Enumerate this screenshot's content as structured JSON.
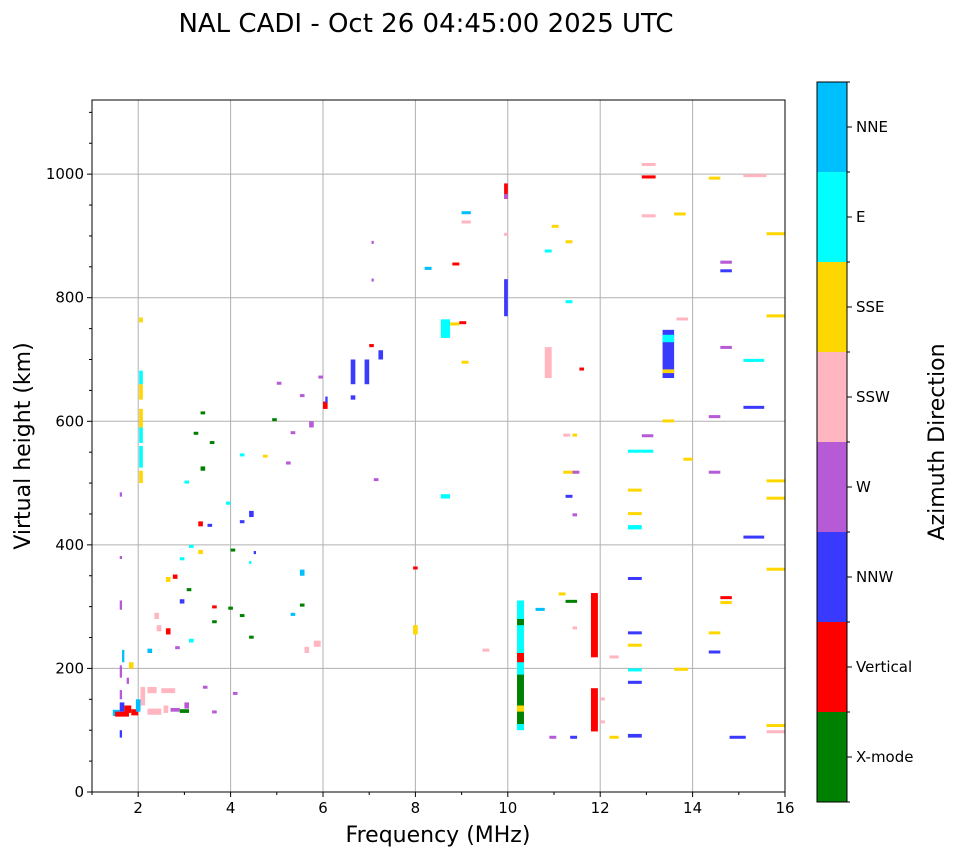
{
  "chart_data": {
    "type": "heatmap",
    "title": "NAL CADI - Oct 26 04:45:00 2025 UTC",
    "xlabel": "Frequency (MHz)",
    "ylabel": "Virtual height (km)",
    "xlim": [
      1,
      16
    ],
    "ylim": [
      0,
      1120
    ],
    "xticks": [
      2,
      4,
      6,
      8,
      10,
      12,
      14,
      16
    ],
    "yticks": [
      0,
      200,
      400,
      600,
      800,
      1000
    ],
    "grid": true,
    "colorbar": {
      "label": "Azimuth Direction",
      "categories": [
        "X-mode",
        "Vertical",
        "NNW",
        "W",
        "SSW",
        "SSE",
        "E",
        "NNE"
      ],
      "colors": [
        "#008000",
        "#ff0000",
        "#3a3aff",
        "#b65ad6",
        "#ffb6c1",
        "#ffd700",
        "#00ffff",
        "#00bfff"
      ]
    },
    "echo_fields": [
      "f_start_MHz",
      "f_end_MHz",
      "h_start_km",
      "h_end_km",
      "category_index"
    ],
    "echoes": [
      [
        2.02,
        2.1,
        500,
        520,
        5
      ],
      [
        2.02,
        2.1,
        525,
        560,
        6
      ],
      [
        2.02,
        2.1,
        565,
        590,
        6
      ],
      [
        2.02,
        2.1,
        590,
        620,
        5
      ],
      [
        2.02,
        2.1,
        635,
        660,
        5
      ],
      [
        2.02,
        2.1,
        660,
        682,
        6
      ],
      [
        2.02,
        2.1,
        760,
        768,
        5
      ],
      [
        1.45,
        1.6,
        123,
        133,
        7
      ],
      [
        1.5,
        1.8,
        122,
        130,
        1
      ],
      [
        1.6,
        1.7,
        130,
        145,
        2
      ],
      [
        1.7,
        1.85,
        128,
        140,
        1
      ],
      [
        1.85,
        2.0,
        124,
        134,
        1
      ],
      [
        1.95,
        2.05,
        130,
        150,
        7
      ],
      [
        1.6,
        1.65,
        88,
        100,
        2
      ],
      [
        1.6,
        1.65,
        150,
        165,
        3
      ],
      [
        1.6,
        1.65,
        185,
        205,
        3
      ],
      [
        1.65,
        1.7,
        210,
        230,
        7
      ],
      [
        1.8,
        1.9,
        200,
        210,
        5
      ],
      [
        1.75,
        1.8,
        175,
        185,
        3
      ],
      [
        1.6,
        1.65,
        478,
        485,
        3
      ],
      [
        1.6,
        1.65,
        378,
        382,
        3
      ],
      [
        1.6,
        1.65,
        295,
        310,
        3
      ],
      [
        2.05,
        2.15,
        140,
        170,
        4
      ],
      [
        2.2,
        2.5,
        125,
        135,
        4
      ],
      [
        2.2,
        2.4,
        160,
        170,
        4
      ],
      [
        2.5,
        2.8,
        160,
        168,
        4
      ],
      [
        2.55,
        2.65,
        128,
        140,
        4
      ],
      [
        2.7,
        2.9,
        130,
        136,
        3
      ],
      [
        2.9,
        3.1,
        128,
        134,
        0
      ],
      [
        3.0,
        3.1,
        135,
        145,
        3
      ],
      [
        3.4,
        3.5,
        168,
        172,
        3
      ],
      [
        3.6,
        3.7,
        128,
        132,
        3
      ],
      [
        4.05,
        4.15,
        158,
        162,
        3
      ],
      [
        2.2,
        2.3,
        225,
        232,
        7
      ],
      [
        2.4,
        2.5,
        260,
        270,
        4
      ],
      [
        2.35,
        2.45,
        280,
        290,
        4
      ],
      [
        2.6,
        2.7,
        255,
        265,
        1
      ],
      [
        2.8,
        2.9,
        232,
        236,
        3
      ],
      [
        3.1,
        3.2,
        242,
        248,
        6
      ],
      [
        2.9,
        3.0,
        305,
        312,
        2
      ],
      [
        3.05,
        3.15,
        325,
        330,
        0
      ],
      [
        2.75,
        2.85,
        345,
        352,
        1
      ],
      [
        2.6,
        2.7,
        340,
        348,
        5
      ],
      [
        2.9,
        3.0,
        375,
        380,
        6
      ],
      [
        3.1,
        3.2,
        395,
        400,
        6
      ],
      [
        3.3,
        3.4,
        385,
        392,
        5
      ],
      [
        3.3,
        3.4,
        430,
        438,
        1
      ],
      [
        3.5,
        3.6,
        430,
        434,
        2
      ],
      [
        3.0,
        3.1,
        500,
        504,
        6
      ],
      [
        3.35,
        3.45,
        520,
        527,
        0
      ],
      [
        3.2,
        3.3,
        580,
        583,
        0
      ],
      [
        3.35,
        3.45,
        612,
        616,
        0
      ],
      [
        3.55,
        3.65,
        565,
        568,
        0
      ],
      [
        3.6,
        3.7,
        298,
        302,
        1
      ],
      [
        3.6,
        3.7,
        275,
        278,
        0
      ],
      [
        3.95,
        4.05,
        295,
        300,
        0
      ],
      [
        4.2,
        4.3,
        285,
        288,
        0
      ],
      [
        4.4,
        4.5,
        250,
        253,
        0
      ],
      [
        4.4,
        4.45,
        370,
        374,
        6
      ],
      [
        4.5,
        4.55,
        385,
        390,
        2
      ],
      [
        4.0,
        4.1,
        390,
        394,
        0
      ],
      [
        3.9,
        4.0,
        465,
        470,
        6
      ],
      [
        4.4,
        4.5,
        445,
        455,
        2
      ],
      [
        4.2,
        4.3,
        545,
        548,
        6
      ],
      [
        4.2,
        4.3,
        435,
        440,
        2
      ],
      [
        4.7,
        4.8,
        543,
        546,
        5
      ],
      [
        4.9,
        5.0,
        602,
        605,
        0
      ],
      [
        5.2,
        5.3,
        530,
        535,
        3
      ],
      [
        5.3,
        5.4,
        580,
        584,
        3
      ],
      [
        5.0,
        5.1,
        660,
        664,
        3
      ],
      [
        5.5,
        5.6,
        640,
        644,
        3
      ],
      [
        5.7,
        5.8,
        590,
        600,
        3
      ],
      [
        5.9,
        6.0,
        670,
        674,
        3
      ],
      [
        6.0,
        6.1,
        620,
        632,
        1
      ],
      [
        6.05,
        6.1,
        630,
        640,
        2
      ],
      [
        6.6,
        6.7,
        660,
        700,
        2
      ],
      [
        6.6,
        6.7,
        635,
        642,
        2
      ],
      [
        6.9,
        7.0,
        660,
        700,
        2
      ],
      [
        7.0,
        7.1,
        720,
        725,
        1
      ],
      [
        7.2,
        7.3,
        700,
        715,
        2
      ],
      [
        7.05,
        7.1,
        888,
        892,
        3
      ],
      [
        7.05,
        7.1,
        828,
        831,
        3
      ],
      [
        5.3,
        5.4,
        285,
        290,
        7
      ],
      [
        5.5,
        5.6,
        350,
        360,
        7
      ],
      [
        5.6,
        5.7,
        225,
        235,
        4
      ],
      [
        5.8,
        5.95,
        235,
        245,
        4
      ],
      [
        5.5,
        5.6,
        300,
        305,
        0
      ],
      [
        7.95,
        8.05,
        255,
        270,
        5
      ],
      [
        7.95,
        8.05,
        362,
        365,
        1
      ],
      [
        7.1,
        7.2,
        505,
        508,
        3
      ],
      [
        8.2,
        8.35,
        845,
        850,
        7
      ],
      [
        8.55,
        8.75,
        735,
        765,
        6
      ],
      [
        8.75,
        8.95,
        755,
        760,
        5
      ],
      [
        8.95,
        9.1,
        758,
        762,
        1
      ],
      [
        8.8,
        8.95,
        853,
        857,
        1
      ],
      [
        9.0,
        9.2,
        937,
        940,
        7
      ],
      [
        9.0,
        9.2,
        922,
        925,
        4
      ],
      [
        9.0,
        9.15,
        695,
        698,
        5
      ],
      [
        8.55,
        8.75,
        475,
        482,
        6
      ],
      [
        9.45,
        9.6,
        228,
        232,
        4
      ],
      [
        9.92,
        10.0,
        960,
        985,
        1
      ],
      [
        9.92,
        10.0,
        960,
        968,
        3
      ],
      [
        9.92,
        10.0,
        770,
        830,
        2
      ],
      [
        9.92,
        10.0,
        900,
        905,
        4
      ],
      [
        10.2,
        10.35,
        100,
        310,
        6
      ],
      [
        10.2,
        10.35,
        110,
        190,
        0
      ],
      [
        10.2,
        10.35,
        210,
        225,
        1
      ],
      [
        10.2,
        10.35,
        270,
        280,
        0
      ],
      [
        10.2,
        10.35,
        130,
        140,
        5
      ],
      [
        10.6,
        10.8,
        295,
        298,
        7
      ],
      [
        10.8,
        10.95,
        670,
        720,
        4
      ],
      [
        10.8,
        10.95,
        875,
        878,
        6
      ],
      [
        10.95,
        11.1,
        915,
        918,
        5
      ],
      [
        11.25,
        11.4,
        890,
        893,
        5
      ],
      [
        11.25,
        11.4,
        793,
        796,
        6
      ],
      [
        11.55,
        11.65,
        684,
        687,
        1
      ],
      [
        11.2,
        11.35,
        578,
        580,
        4
      ],
      [
        11.4,
        11.5,
        578,
        580,
        5
      ],
      [
        11.2,
        11.5,
        517,
        520,
        5
      ],
      [
        11.4,
        11.55,
        517,
        520,
        3
      ],
      [
        11.25,
        11.4,
        478,
        481,
        2
      ],
      [
        11.4,
        11.5,
        448,
        451,
        3
      ],
      [
        11.1,
        11.25,
        320,
        323,
        5
      ],
      [
        11.25,
        11.5,
        308,
        311,
        0
      ],
      [
        11.4,
        11.5,
        265,
        268,
        4
      ],
      [
        10.9,
        11.05,
        88,
        91,
        3
      ],
      [
        11.35,
        11.5,
        88,
        91,
        2
      ],
      [
        11.8,
        11.95,
        218,
        322,
        1
      ],
      [
        11.8,
        11.95,
        98,
        168,
        1
      ],
      [
        12.0,
        12.1,
        150,
        153,
        4
      ],
      [
        12.0,
        12.1,
        113,
        116,
        4
      ],
      [
        12.2,
        12.4,
        218,
        221,
        4
      ],
      [
        12.2,
        12.4,
        88,
        91,
        5
      ],
      [
        12.9,
        13.2,
        1015,
        1018,
        4
      ],
      [
        12.9,
        13.2,
        993,
        998,
        1
      ],
      [
        12.9,
        13.2,
        932,
        935,
        4
      ],
      [
        12.9,
        13.15,
        575,
        579,
        3
      ],
      [
        12.9,
        13.15,
        551,
        554,
        6
      ],
      [
        12.6,
        12.9,
        551,
        554,
        6
      ],
      [
        12.6,
        12.9,
        488,
        491,
        5
      ],
      [
        12.6,
        12.9,
        450,
        453,
        5
      ],
      [
        12.6,
        12.9,
        425,
        432,
        6
      ],
      [
        12.6,
        12.9,
        345,
        348,
        2
      ],
      [
        12.6,
        12.9,
        257,
        260,
        2
      ],
      [
        12.6,
        12.9,
        237,
        240,
        5
      ],
      [
        12.6,
        12.9,
        197,
        200,
        6
      ],
      [
        12.6,
        12.9,
        175,
        180,
        2
      ],
      [
        12.6,
        12.9,
        88,
        94,
        2
      ],
      [
        13.35,
        13.6,
        670,
        748,
        2
      ],
      [
        13.35,
        13.6,
        728,
        740,
        6
      ],
      [
        13.35,
        13.6,
        678,
        684,
        5
      ],
      [
        13.35,
        13.6,
        600,
        603,
        5
      ],
      [
        13.6,
        13.85,
        935,
        938,
        5
      ],
      [
        13.65,
        13.9,
        765,
        768,
        4
      ],
      [
        13.8,
        14.0,
        538,
        541,
        5
      ],
      [
        13.6,
        13.9,
        198,
        201,
        5
      ],
      [
        14.35,
        14.6,
        993,
        996,
        5
      ],
      [
        14.6,
        14.85,
        855,
        860,
        3
      ],
      [
        14.6,
        14.85,
        843,
        846,
        2
      ],
      [
        14.6,
        14.85,
        718,
        722,
        3
      ],
      [
        14.35,
        14.6,
        607,
        610,
        3
      ],
      [
        14.35,
        14.6,
        517,
        520,
        3
      ],
      [
        14.6,
        14.85,
        313,
        317,
        1
      ],
      [
        14.6,
        14.85,
        305,
        309,
        5
      ],
      [
        14.35,
        14.6,
        257,
        260,
        5
      ],
      [
        14.35,
        14.6,
        225,
        229,
        2
      ],
      [
        14.8,
        15.15,
        88,
        91,
        2
      ],
      [
        15.1,
        15.6,
        998,
        1000,
        4
      ],
      [
        15.6,
        16,
        903,
        906,
        5
      ],
      [
        15.6,
        16,
        770,
        773,
        5
      ],
      [
        15.1,
        15.55,
        698,
        701,
        6
      ],
      [
        15.1,
        15.55,
        622,
        625,
        2
      ],
      [
        15.1,
        15.55,
        413,
        415,
        2
      ],
      [
        15.6,
        16,
        503,
        506,
        5
      ],
      [
        15.6,
        16,
        475,
        478,
        5
      ],
      [
        15.6,
        16,
        360,
        363,
        5
      ],
      [
        15.6,
        16,
        107,
        110,
        5
      ],
      [
        15.6,
        16,
        98,
        100,
        4
      ]
    ]
  }
}
